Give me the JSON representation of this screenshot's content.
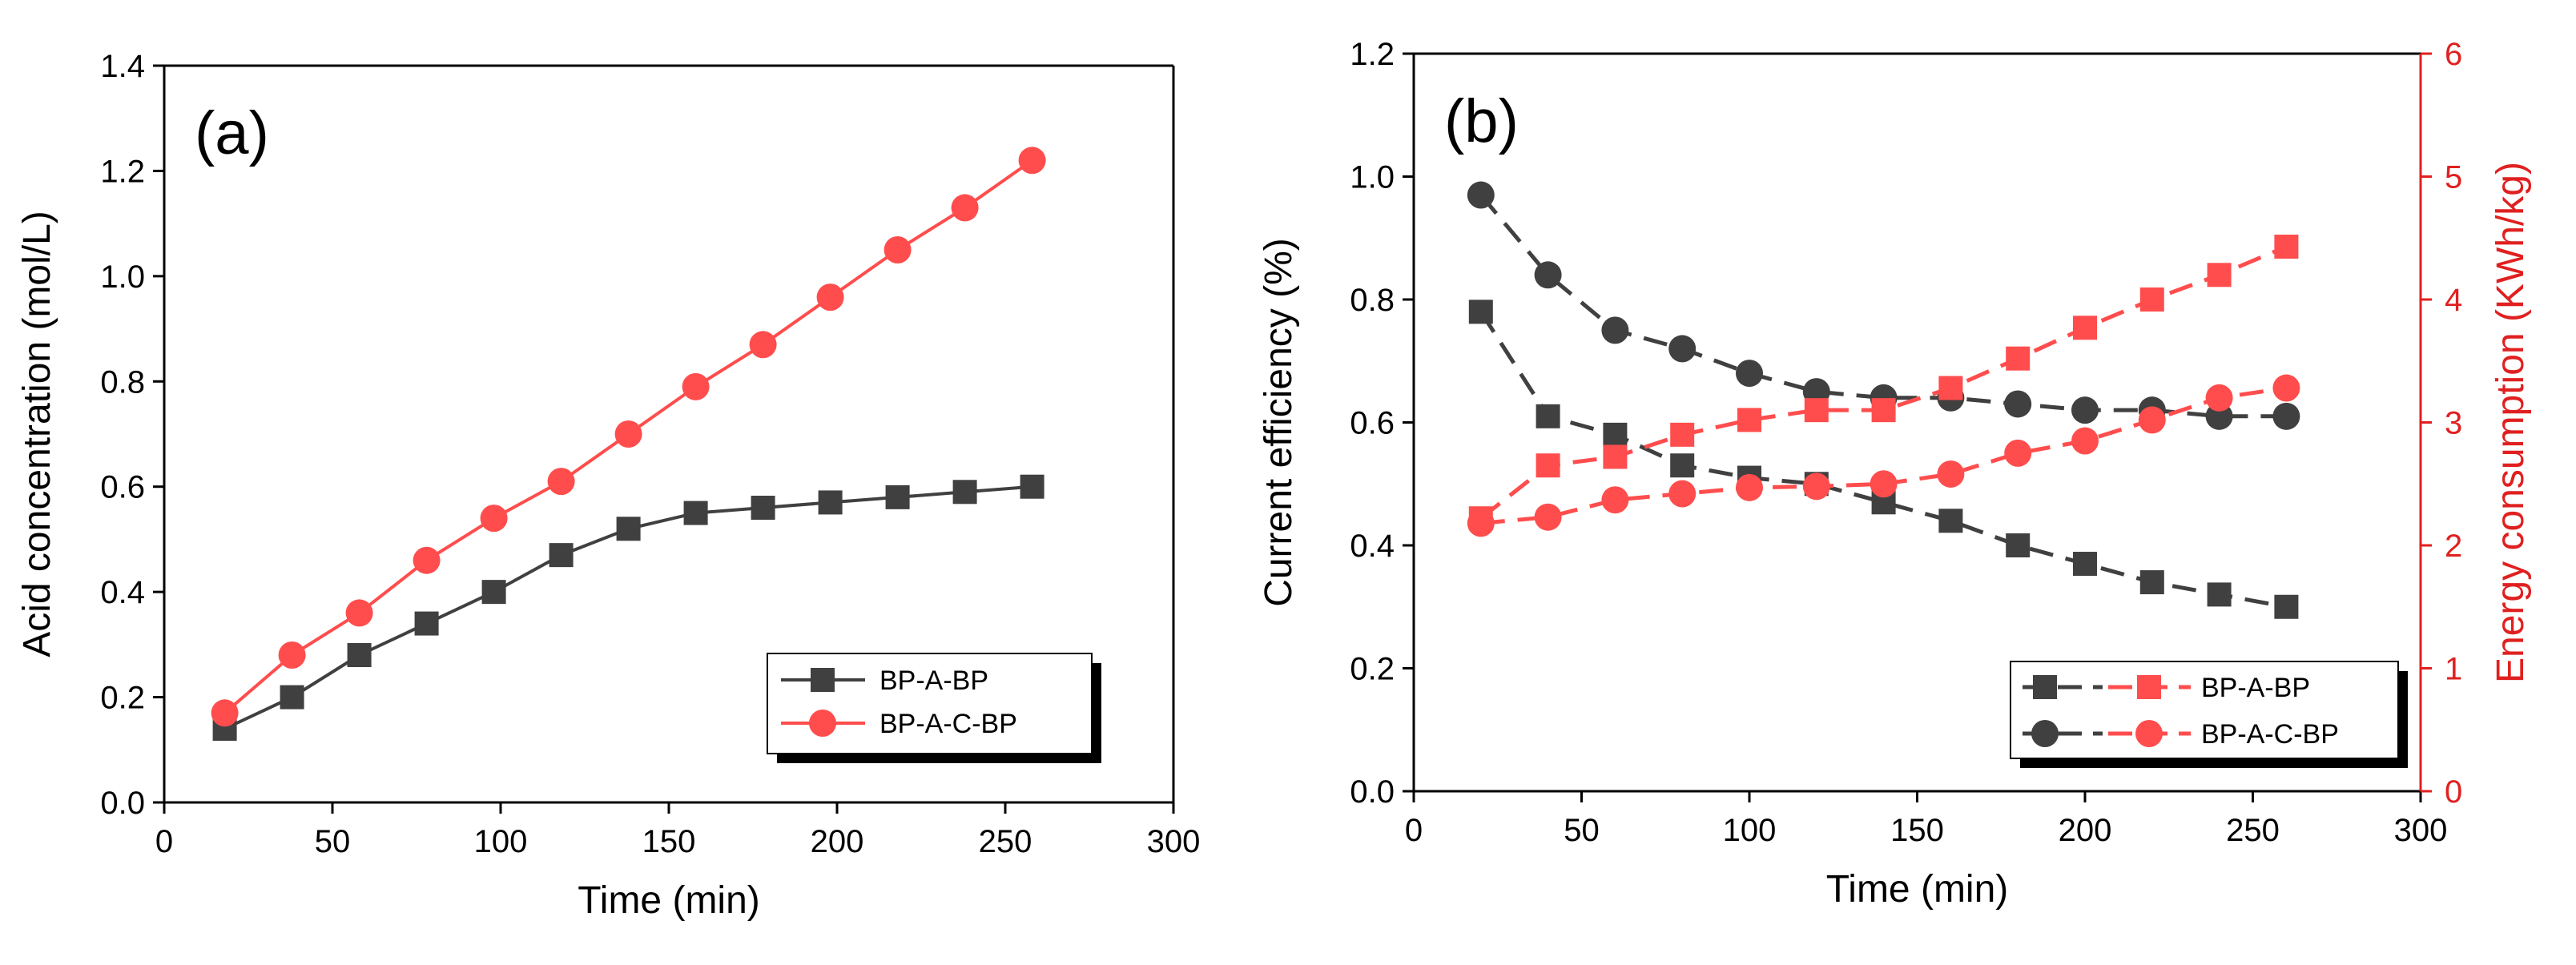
{
  "colors": {
    "black_series": "#404040",
    "red_series": "#ff4d4d",
    "red_axis": "#e02020"
  },
  "chart_data": [
    {
      "type": "line",
      "panel_label": "(a)",
      "xlabel": "Time (min)",
      "ylabel": "Acid concentration (mol/L)",
      "xlim": [
        0,
        300
      ],
      "ylim": [
        0.0,
        1.4
      ],
      "x_ticks": [
        "0",
        "50",
        "100",
        "150",
        "200",
        "250",
        "300"
      ],
      "y_ticks": [
        "0.0",
        "0.2",
        "0.4",
        "0.6",
        "0.8",
        "1.0",
        "1.2",
        "1.4"
      ],
      "grid": false,
      "legend_position": "bottom-right",
      "x": [
        18,
        38,
        58,
        78,
        98,
        118,
        138,
        158,
        178,
        198,
        218,
        238,
        258
      ],
      "series": [
        {
          "name": "BP-A-BP",
          "marker": "square",
          "color": "#404040",
          "values": [
            0.14,
            0.2,
            0.28,
            0.34,
            0.4,
            0.47,
            0.52,
            0.55,
            0.56,
            0.57,
            0.58,
            0.59,
            0.6
          ]
        },
        {
          "name": "BP-A-C-BP",
          "marker": "circle",
          "color": "#ff4d4d",
          "values": [
            0.17,
            0.28,
            0.36,
            0.46,
            0.54,
            0.61,
            0.7,
            0.79,
            0.87,
            0.96,
            1.05,
            1.13,
            1.22
          ]
        }
      ]
    },
    {
      "type": "line",
      "panel_label": "(b)",
      "xlabel": "Time (min)",
      "ylabel": "Current efficiency (%)",
      "y2label": "Energy consumption (KWh/kg)",
      "xlim": [
        0,
        300
      ],
      "ylim": [
        0.0,
        1.2
      ],
      "y2lim": [
        0,
        6
      ],
      "x_ticks": [
        "0",
        "50",
        "100",
        "150",
        "200",
        "250",
        "300"
      ],
      "y_ticks": [
        "0.0",
        "0.2",
        "0.4",
        "0.6",
        "0.8",
        "1.0",
        "1.2"
      ],
      "y2_ticks": [
        "0",
        "1",
        "2",
        "3",
        "4",
        "5",
        "6"
      ],
      "grid": false,
      "legend_position": "bottom-right",
      "x": [
        20,
        40,
        60,
        80,
        100,
        120,
        140,
        160,
        180,
        200,
        220,
        240,
        260
      ],
      "series": [
        {
          "name": "BP-A-BP",
          "axis": "left",
          "marker": "square",
          "color": "#404040",
          "values": [
            0.78,
            0.61,
            0.58,
            0.53,
            0.51,
            0.5,
            0.47,
            0.44,
            0.4,
            0.37,
            0.34,
            0.32,
            0.3
          ]
        },
        {
          "name": "BP-A-C-BP",
          "axis": "left",
          "marker": "circle",
          "color": "#404040",
          "values": [
            0.97,
            0.84,
            0.75,
            0.72,
            0.68,
            0.65,
            0.64,
            0.64,
            0.63,
            0.62,
            0.62,
            0.61,
            0.61
          ]
        },
        {
          "name": "BP-A-BP",
          "axis": "right",
          "marker": "square",
          "color": "#ff4d4d",
          "values": [
            2.22,
            2.65,
            2.72,
            2.9,
            3.02,
            3.1,
            3.1,
            3.28,
            3.52,
            3.77,
            4.0,
            4.2,
            4.43
          ]
        },
        {
          "name": "BP-A-C-BP",
          "axis": "right",
          "marker": "circle",
          "color": "#ff4d4d",
          "values": [
            2.18,
            2.23,
            2.37,
            2.42,
            2.47,
            2.48,
            2.5,
            2.58,
            2.75,
            2.85,
            3.02,
            3.2,
            3.28
          ]
        }
      ],
      "legend": [
        {
          "label": "BP-A-BP",
          "marker": "square"
        },
        {
          "label": "BP-A-C-BP",
          "marker": "circle"
        }
      ]
    }
  ]
}
